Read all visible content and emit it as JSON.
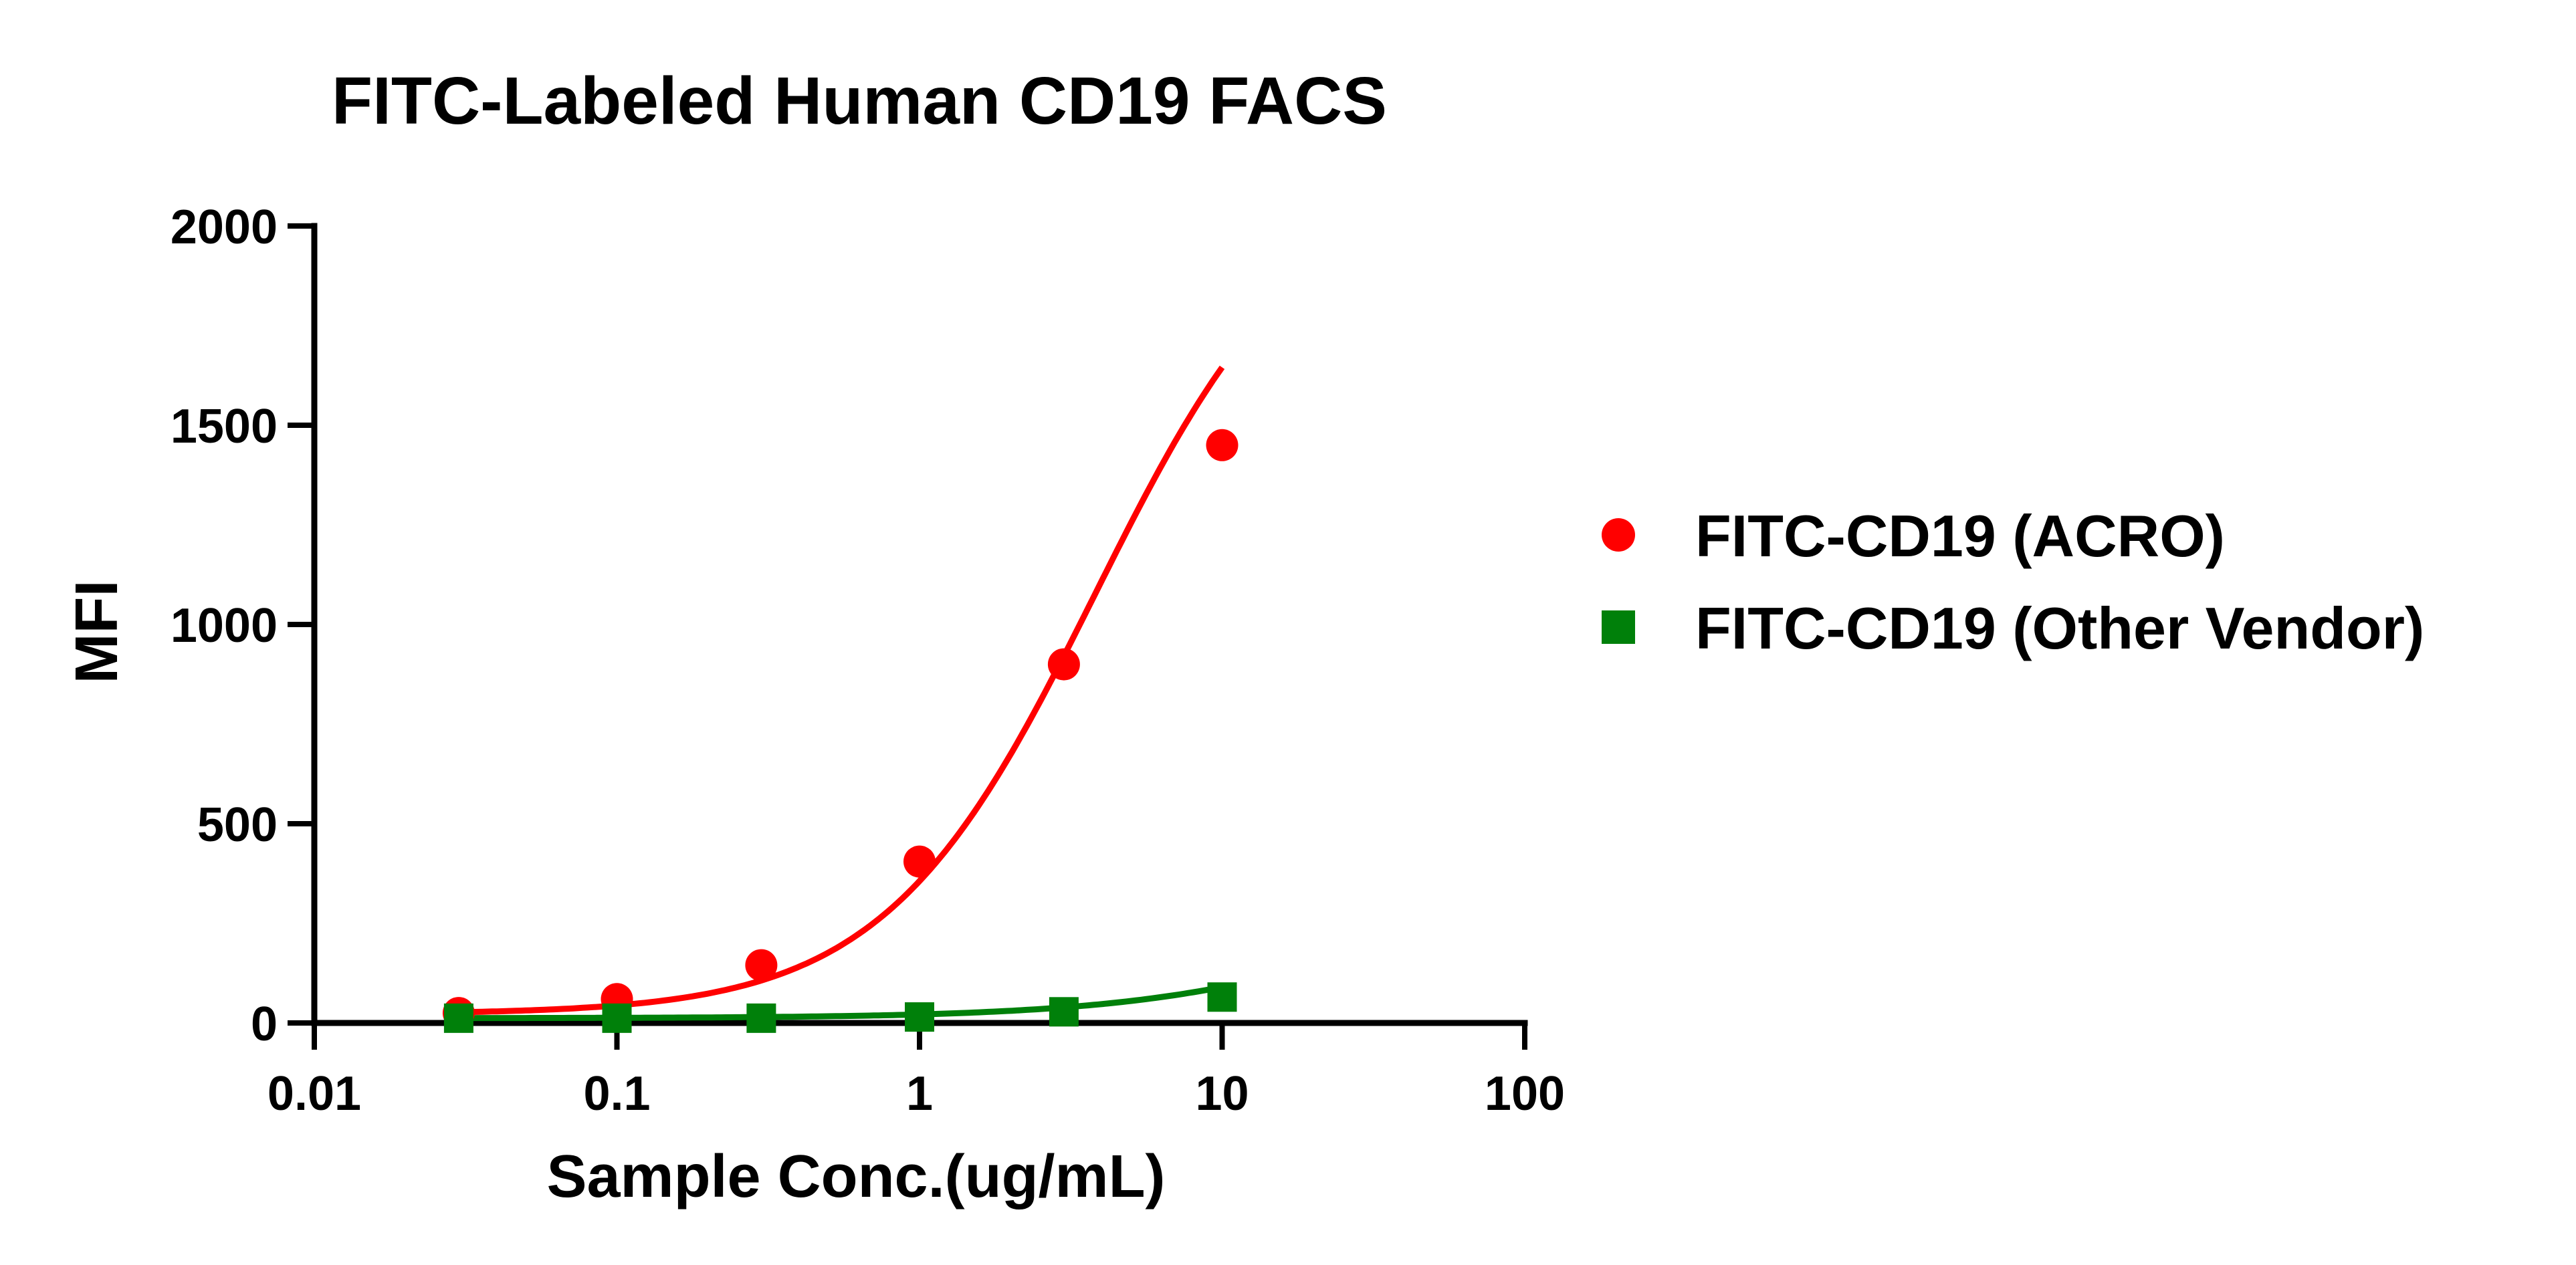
{
  "chart_data": {
    "type": "line",
    "title": "FITC-Labeled Human CD19 FACS",
    "xlabel": "Sample Conc.(ug/mL)",
    "ylabel": "MFI",
    "xscale": "log",
    "xlim": [
      0.01,
      100
    ],
    "ylim": [
      0,
      2000
    ],
    "x_ticks": [
      0.01,
      0.1,
      1,
      10,
      100
    ],
    "x_tick_labels": [
      "0.01",
      "0.1",
      "1",
      "10",
      "100"
    ],
    "y_ticks": [
      0,
      500,
      1000,
      1500,
      2000
    ],
    "y_tick_labels": [
      "0",
      "500",
      "1000",
      "1500",
      "2000"
    ],
    "legend_position": "right",
    "series": [
      {
        "name": "FITC-CD19 (ACRO)",
        "color": "#ff0000",
        "marker": "circle",
        "x": [
          0.03,
          0.1,
          0.3,
          1,
          3,
          10
        ],
        "y": [
          25,
          60,
          145,
          405,
          900,
          1450
        ],
        "fit": {
          "bottom": 22,
          "top": 2130,
          "logEC50": 0.58,
          "hill": 1.25
        }
      },
      {
        "name": "FITC-CD19 (Other Vendor)",
        "color": "#00800a",
        "marker": "square",
        "x": [
          0.03,
          0.1,
          0.3,
          1,
          3,
          10
        ],
        "y": [
          12,
          12,
          12,
          15,
          28,
          65
        ],
        "fit": {
          "bottom": 12,
          "top": 400,
          "logEC50": 1.6,
          "hill": 1.0
        }
      }
    ]
  }
}
